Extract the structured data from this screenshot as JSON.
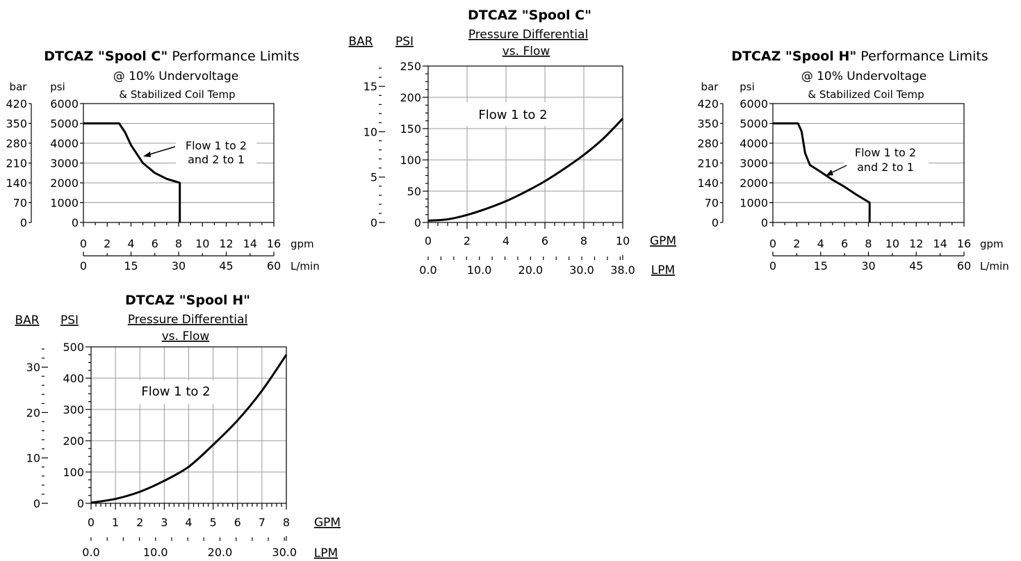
{
  "chart_data": [
    {
      "id": "perf_c",
      "type": "line",
      "title_bold": "DTCAZ \"Spool C\"",
      "title_rest": " Performance Limits",
      "subtitle1": "@ 10% Undervoltage",
      "subtitle2": "& Stabilized Coil Temp",
      "y_left_label": "bar",
      "y_right_label": "psi",
      "x_unit1": "gpm",
      "x_unit2": "L/min",
      "bar_ticks": [
        "420",
        "350",
        "280",
        "210",
        "140",
        "70",
        "0"
      ],
      "psi_ticks": [
        "6000",
        "5000",
        "4000",
        "3000",
        "2000",
        "1000",
        "0"
      ],
      "x_ticks": [
        "0",
        "2",
        "4",
        "6",
        "8",
        "10",
        "12",
        "14",
        "16"
      ],
      "x2_ticks": [
        "0",
        "15",
        "30",
        "45",
        "60"
      ],
      "xlim": [
        0,
        16
      ],
      "ylim": [
        0,
        6000
      ],
      "annotation_line1": "Flow 1 to 2",
      "annotation_line2": "and 2 to 1",
      "series": [
        {
          "x": [
            0,
            3,
            3.5,
            4,
            5,
            6,
            7,
            8.1,
            8.1
          ],
          "y": [
            5000,
            5000,
            4550,
            3900,
            3000,
            2500,
            2200,
            2000,
            0
          ]
        }
      ]
    },
    {
      "id": "pd_c",
      "type": "line",
      "title": "DTCAZ \"Spool C\"",
      "subtitle1": "Pressure Differential",
      "subtitle2": "vs. Flow",
      "y_left_label": "BAR",
      "y_right_label": "PSI",
      "x_unit1": "GPM",
      "x_unit2": "LPM",
      "bar_ticks": [
        "15",
        "10",
        "5",
        "0"
      ],
      "psi_ticks": [
        "250",
        "200",
        "150",
        "100",
        "50",
        "0"
      ],
      "x_ticks": [
        "0",
        "2",
        "4",
        "6",
        "8",
        "10"
      ],
      "x2_ticks": [
        "0.0",
        "10.0",
        "20.0",
        "30.0",
        "38.0"
      ],
      "xlim": [
        0,
        10
      ],
      "ylim": [
        0,
        250
      ],
      "annotation": "Flow 1 to 2",
      "series": [
        {
          "x": [
            0,
            1,
            2,
            3,
            4,
            5,
            6,
            7,
            8,
            9,
            10
          ],
          "y": [
            3,
            5,
            12,
            22,
            34,
            49,
            66,
            86,
            108,
            134,
            166
          ]
        }
      ]
    },
    {
      "id": "perf_h",
      "type": "line",
      "title_bold": "DTCAZ \"Spool H\"",
      "title_rest": " Performance Limits",
      "subtitle1": "@ 10% Undervoltage",
      "subtitle2": "& Stabilized Coil Temp",
      "y_left_label": "bar",
      "y_right_label": "psi",
      "x_unit1": "gpm",
      "x_unit2": "L/min",
      "bar_ticks": [
        "420",
        "350",
        "280",
        "210",
        "140",
        "70",
        "0"
      ],
      "psi_ticks": [
        "6000",
        "5000",
        "4000",
        "3000",
        "2000",
        "1000",
        "0"
      ],
      "x_ticks": [
        "0",
        "2",
        "4",
        "6",
        "8",
        "10",
        "12",
        "14",
        "16"
      ],
      "x2_ticks": [
        "0",
        "15",
        "30",
        "45",
        "60"
      ],
      "xlim": [
        0,
        16
      ],
      "ylim": [
        0,
        6000
      ],
      "annotation_line1": "Flow 1 to 2",
      "annotation_line2": "and 2 to 1",
      "series": [
        {
          "x": [
            0,
            2.1,
            2.4,
            2.7,
            3.1,
            4,
            5,
            6,
            7,
            8.1,
            8.1
          ],
          "y": [
            5000,
            5000,
            4600,
            3500,
            2900,
            2550,
            2150,
            1800,
            1400,
            1000,
            0
          ]
        }
      ]
    },
    {
      "id": "pd_h",
      "type": "line",
      "title": "DTCAZ \"Spool H\"",
      "subtitle1": "Pressure Differential",
      "subtitle2": "vs. Flow",
      "y_left_label": "BAR",
      "y_right_label": "PSI",
      "x_unit1": "GPM",
      "x_unit2": "LPM",
      "bar_ticks": [
        "30",
        "20",
        "10",
        "0"
      ],
      "psi_ticks": [
        "500",
        "400",
        "300",
        "200",
        "100",
        "0"
      ],
      "x_ticks": [
        "0",
        "1",
        "2",
        "3",
        "4",
        "5",
        "6",
        "7",
        "8"
      ],
      "x2_ticks": [
        "0.0",
        "10.0",
        "20.0",
        "30.0"
      ],
      "xlim": [
        0,
        8
      ],
      "ylim": [
        0,
        500
      ],
      "annotation": "Flow 1 to 2",
      "series": [
        {
          "x": [
            0,
            1,
            2,
            3,
            4,
            5,
            6,
            7,
            8
          ],
          "y": [
            2,
            14,
            37,
            72,
            117,
            187,
            265,
            360,
            475
          ]
        }
      ]
    }
  ]
}
